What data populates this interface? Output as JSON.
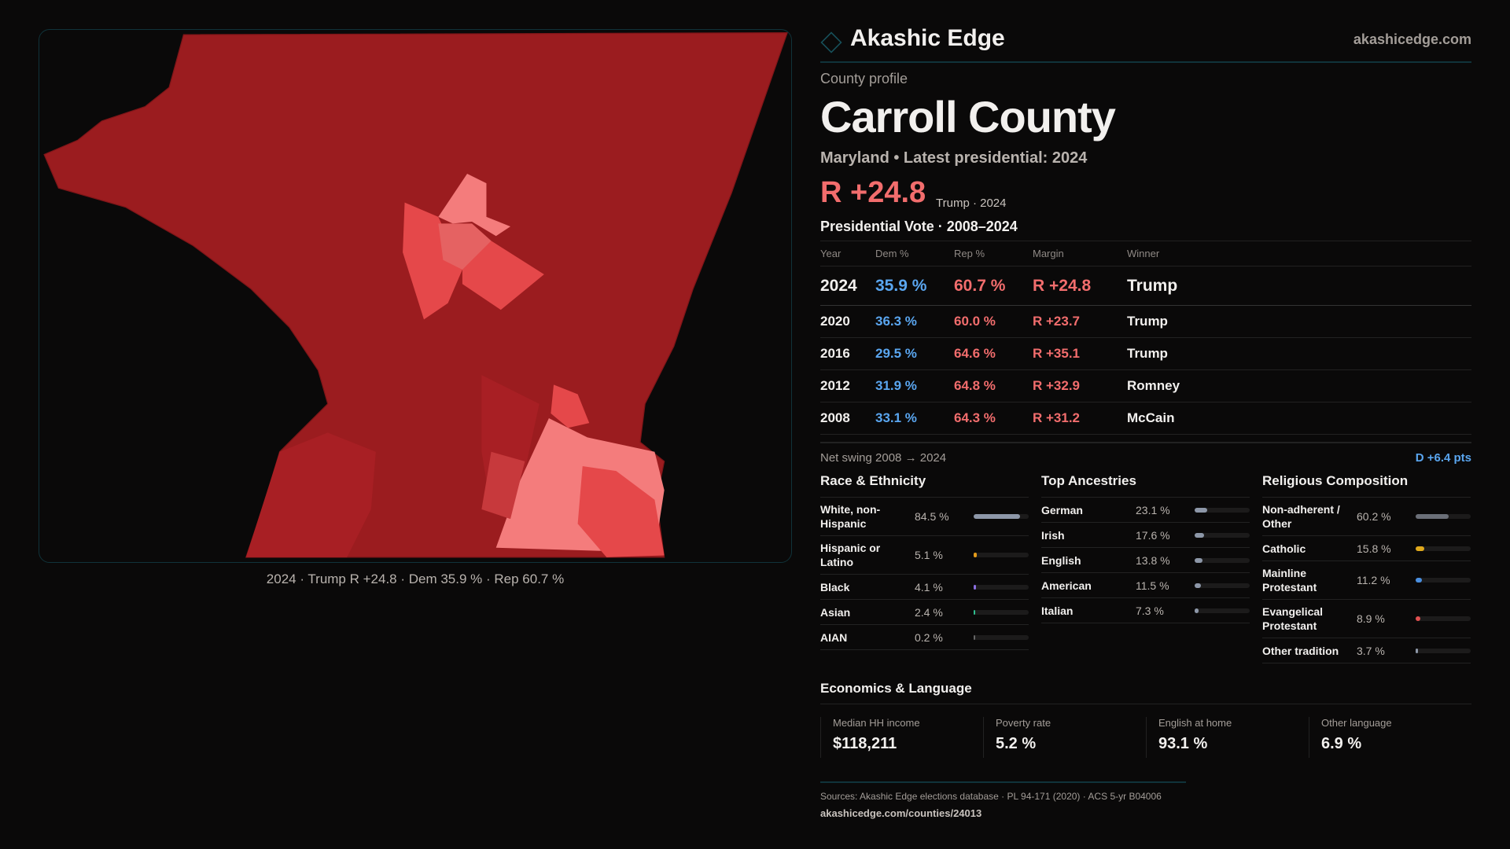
{
  "brand": {
    "name": "Akashic Edge",
    "site": "akashicedge.com"
  },
  "profile": {
    "kicker": "County profile",
    "title": "Carroll County",
    "subtitle": "Maryland • Latest presidential: 2024",
    "margin": "R +24.8",
    "margin_note": "Trump · 2024"
  },
  "map": {
    "caption": "2024 · Trump R +24.8 · Dem 35.9 % · Rep 60.7 %",
    "colors": {
      "base": "#9b1c1f",
      "mid": "#b02228",
      "bright": "#e5484a",
      "pink": "#f47c7c"
    }
  },
  "votes": {
    "title": "Presidential Vote · 2008–2024",
    "headers": [
      "Year",
      "Dem %",
      "Rep %",
      "Margin",
      "Winner"
    ],
    "rows": [
      [
        "2024",
        "35.9 %",
        "60.7 %",
        "R +24.8",
        "Trump"
      ],
      [
        "2020",
        "36.3 %",
        "60.0 %",
        "R +23.7",
        "Trump"
      ],
      [
        "2016",
        "29.5 %",
        "64.6 %",
        "R +35.1",
        "Trump"
      ],
      [
        "2012",
        "31.9 %",
        "64.8 %",
        "R +32.9",
        "Romney"
      ],
      [
        "2008",
        "33.1 %",
        "64.3 %",
        "R +31.2",
        "McCain"
      ]
    ]
  },
  "swing": {
    "label": "Net swing 2008 → 2024",
    "value": "D +6.4 pts"
  },
  "race": {
    "title": "Race & Ethnicity",
    "items": [
      {
        "l": "White, non-Hispanic",
        "p": "84.5 %",
        "v": 84.5,
        "c": "#8d97a8"
      },
      {
        "l": "Hispanic or Latino",
        "p": "5.1 %",
        "v": 5.1,
        "c": "#e39a1b"
      },
      {
        "l": "Black",
        "p": "4.1 %",
        "v": 4.1,
        "c": "#8b6fe0"
      },
      {
        "l": "Asian",
        "p": "2.4 %",
        "v": 2.4,
        "c": "#2fbf8f"
      },
      {
        "l": "AIAN",
        "p": "0.2 %",
        "v": 0.2,
        "c": "#666"
      }
    ]
  },
  "ancestry": {
    "title": "Top Ancestries",
    "items": [
      {
        "l": "German",
        "p": "23.1 %",
        "v": 23.1,
        "c": "#8d97a8"
      },
      {
        "l": "Irish",
        "p": "17.6 %",
        "v": 17.6,
        "c": "#8d97a8"
      },
      {
        "l": "English",
        "p": "13.8 %",
        "v": 13.8,
        "c": "#8d97a8"
      },
      {
        "l": "American",
        "p": "11.5 %",
        "v": 11.5,
        "c": "#8d97a8"
      },
      {
        "l": "Italian",
        "p": "7.3 %",
        "v": 7.3,
        "c": "#8d97a8"
      }
    ]
  },
  "religion": {
    "title": "Religious Composition",
    "items": [
      {
        "l": "Non-adherent / Other",
        "p": "60.2 %",
        "v": 60.2,
        "c": "#6b6f78"
      },
      {
        "l": "Catholic",
        "p": "15.8 %",
        "v": 15.8,
        "c": "#e0a91c"
      },
      {
        "l": "Mainline Protestant",
        "p": "11.2 %",
        "v": 11.2,
        "c": "#4a8fe0"
      },
      {
        "l": "Evangelical Protestant",
        "p": "8.9 %",
        "v": 8.9,
        "c": "#e05050"
      },
      {
        "l": "Other tradition",
        "p": "3.7 %",
        "v": 3.7,
        "c": "#8d97a8"
      }
    ]
  },
  "econ": {
    "title": "Economics & Language",
    "cards": [
      {
        "k": "Median HH income",
        "v": "$118,211"
      },
      {
        "k": "Poverty rate",
        "v": "5.2 %"
      },
      {
        "k": "English at home",
        "v": "93.1 %"
      },
      {
        "k": "Other language",
        "v": "6.9 %"
      }
    ]
  },
  "sources": {
    "text": "Sources: Akashic Edge elections database · PL 94-171 (2020) · ACS 5-yr B04006",
    "url": "akashicedge.com/counties/24013"
  }
}
